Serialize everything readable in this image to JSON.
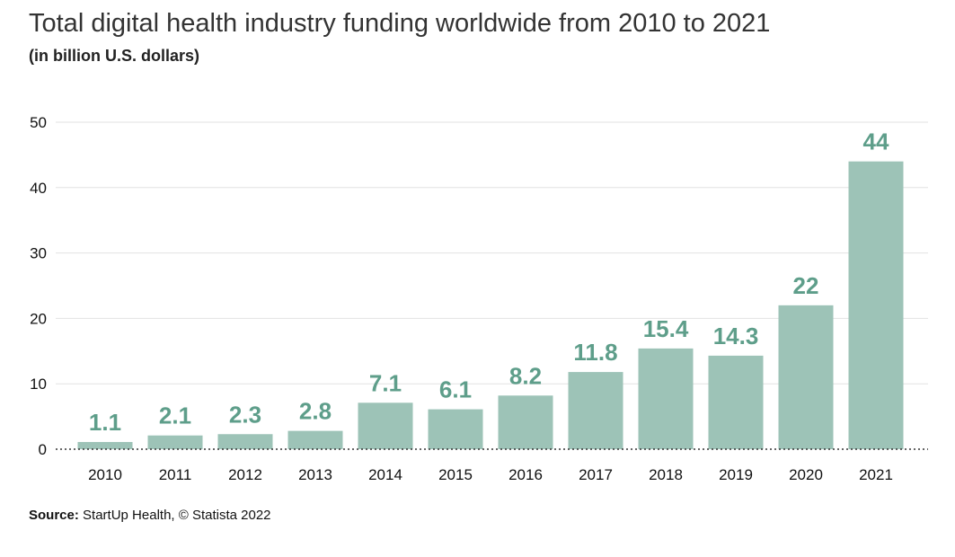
{
  "chart_data": {
    "type": "bar",
    "title": "Total digital health industry funding worldwide from 2010 to 2021",
    "subtitle": "(in billion U.S. dollars)",
    "categories": [
      "2010",
      "2011",
      "2012",
      "2013",
      "2014",
      "2015",
      "2016",
      "2017",
      "2018",
      "2019",
      "2020",
      "2021"
    ],
    "values": [
      1.1,
      2.1,
      2.3,
      2.8,
      7.1,
      6.1,
      8.2,
      11.8,
      15.4,
      14.3,
      22,
      44
    ],
    "data_labels": [
      "1.1",
      "2.1",
      "2.3",
      "2.8",
      "7.1",
      "6.1",
      "8.2",
      "11.8",
      "15.4",
      "14.3",
      "22",
      "44"
    ],
    "ylim": [
      0,
      50
    ],
    "yticks": [
      0,
      10,
      20,
      30,
      40,
      50
    ],
    "ytick_labels": [
      "0",
      "10",
      "20",
      "30",
      "40",
      "50"
    ],
    "grid": true,
    "bar_color": "#9dc3b7",
    "label_color": "#5e9e8a"
  },
  "source": {
    "label": "Source:",
    "text": " StartUp Health, © Statista 2022"
  }
}
